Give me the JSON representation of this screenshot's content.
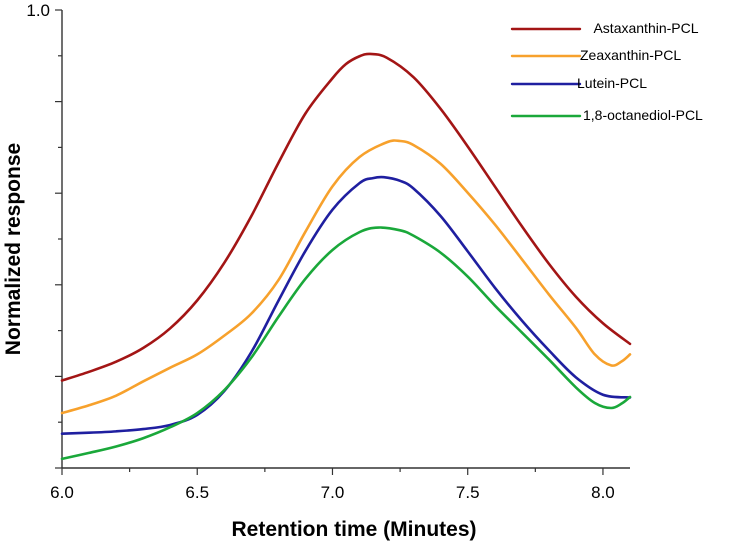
{
  "chart_data": {
    "type": "line",
    "title": "",
    "xlabel": "Retention time (Minutes)",
    "ylabel": "Normalized response",
    "xlim": [
      6.0,
      8.1
    ],
    "ylim": [
      0.0,
      1.0
    ],
    "x_ticks": [
      6.0,
      6.5,
      7.0,
      7.5,
      8.0
    ],
    "x_tick_labels": [
      "6.0",
      "6.5",
      "7.0",
      "7.5",
      "8.0"
    ],
    "y_ticks": [
      0.0,
      0.2,
      0.4,
      0.6,
      0.8,
      1.0
    ],
    "y_tick_labels": [
      "",
      "",
      "",
      "",
      "",
      "1.0"
    ],
    "legend_position": "top-right",
    "grid": false,
    "series": [
      {
        "name": "Astaxanthin-PCL",
        "color": "#a31515",
        "points": [
          [
            6.0,
            0.191
          ],
          [
            6.1,
            0.21
          ],
          [
            6.2,
            0.232
          ],
          [
            6.3,
            0.262
          ],
          [
            6.4,
            0.305
          ],
          [
            6.5,
            0.366
          ],
          [
            6.6,
            0.448
          ],
          [
            6.7,
            0.55
          ],
          [
            6.8,
            0.666
          ],
          [
            6.9,
            0.774
          ],
          [
            7.0,
            0.851
          ],
          [
            7.05,
            0.882
          ],
          [
            7.1,
            0.899
          ],
          [
            7.14,
            0.904
          ],
          [
            7.2,
            0.896
          ],
          [
            7.3,
            0.853
          ],
          [
            7.4,
            0.784
          ],
          [
            7.5,
            0.702
          ],
          [
            7.6,
            0.615
          ],
          [
            7.7,
            0.528
          ],
          [
            7.8,
            0.446
          ],
          [
            7.9,
            0.374
          ],
          [
            8.0,
            0.316
          ],
          [
            8.1,
            0.271
          ]
        ]
      },
      {
        "name": "Zeaxanthin-PCL",
        "color": "#f7a12c",
        "points": [
          [
            6.0,
            0.12
          ],
          [
            6.1,
            0.137
          ],
          [
            6.2,
            0.158
          ],
          [
            6.3,
            0.189
          ],
          [
            6.4,
            0.219
          ],
          [
            6.5,
            0.248
          ],
          [
            6.6,
            0.289
          ],
          [
            6.7,
            0.337
          ],
          [
            6.8,
            0.41
          ],
          [
            6.9,
            0.516
          ],
          [
            7.0,
            0.615
          ],
          [
            7.1,
            0.679
          ],
          [
            7.2,
            0.711
          ],
          [
            7.25,
            0.714
          ],
          [
            7.3,
            0.705
          ],
          [
            7.4,
            0.664
          ],
          [
            7.5,
            0.601
          ],
          [
            7.6,
            0.532
          ],
          [
            7.7,
            0.456
          ],
          [
            7.8,
            0.379
          ],
          [
            7.9,
            0.306
          ],
          [
            7.97,
            0.248
          ],
          [
            8.03,
            0.224
          ],
          [
            8.07,
            0.233
          ],
          [
            8.1,
            0.248
          ]
        ]
      },
      {
        "name": "Lutein-PCL",
        "color": "#1f1fa0",
        "points": [
          [
            6.0,
            0.075
          ],
          [
            6.1,
            0.077
          ],
          [
            6.2,
            0.08
          ],
          [
            6.3,
            0.085
          ],
          [
            6.4,
            0.094
          ],
          [
            6.5,
            0.116
          ],
          [
            6.6,
            0.168
          ],
          [
            6.7,
            0.253
          ],
          [
            6.8,
            0.365
          ],
          [
            6.9,
            0.474
          ],
          [
            7.0,
            0.564
          ],
          [
            7.1,
            0.622
          ],
          [
            7.15,
            0.633
          ],
          [
            7.19,
            0.635
          ],
          [
            7.25,
            0.627
          ],
          [
            7.3,
            0.61
          ],
          [
            7.4,
            0.55
          ],
          [
            7.5,
            0.473
          ],
          [
            7.6,
            0.394
          ],
          [
            7.7,
            0.322
          ],
          [
            7.8,
            0.257
          ],
          [
            7.9,
            0.198
          ],
          [
            8.0,
            0.16
          ],
          [
            8.1,
            0.154
          ]
        ]
      },
      {
        "name": "1,8-octanediol-PCL",
        "color": "#1aa83a",
        "points": [
          [
            6.0,
            0.02
          ],
          [
            6.1,
            0.033
          ],
          [
            6.2,
            0.047
          ],
          [
            6.3,
            0.065
          ],
          [
            6.4,
            0.089
          ],
          [
            6.5,
            0.12
          ],
          [
            6.6,
            0.17
          ],
          [
            6.7,
            0.241
          ],
          [
            6.8,
            0.33
          ],
          [
            6.9,
            0.413
          ],
          [
            7.0,
            0.476
          ],
          [
            7.1,
            0.515
          ],
          [
            7.17,
            0.525
          ],
          [
            7.25,
            0.519
          ],
          [
            7.3,
            0.507
          ],
          [
            7.4,
            0.47
          ],
          [
            7.5,
            0.418
          ],
          [
            7.6,
            0.355
          ],
          [
            7.7,
            0.296
          ],
          [
            7.8,
            0.237
          ],
          [
            7.9,
            0.176
          ],
          [
            7.97,
            0.142
          ],
          [
            8.03,
            0.131
          ],
          [
            8.07,
            0.141
          ],
          [
            8.1,
            0.155
          ]
        ]
      }
    ]
  }
}
